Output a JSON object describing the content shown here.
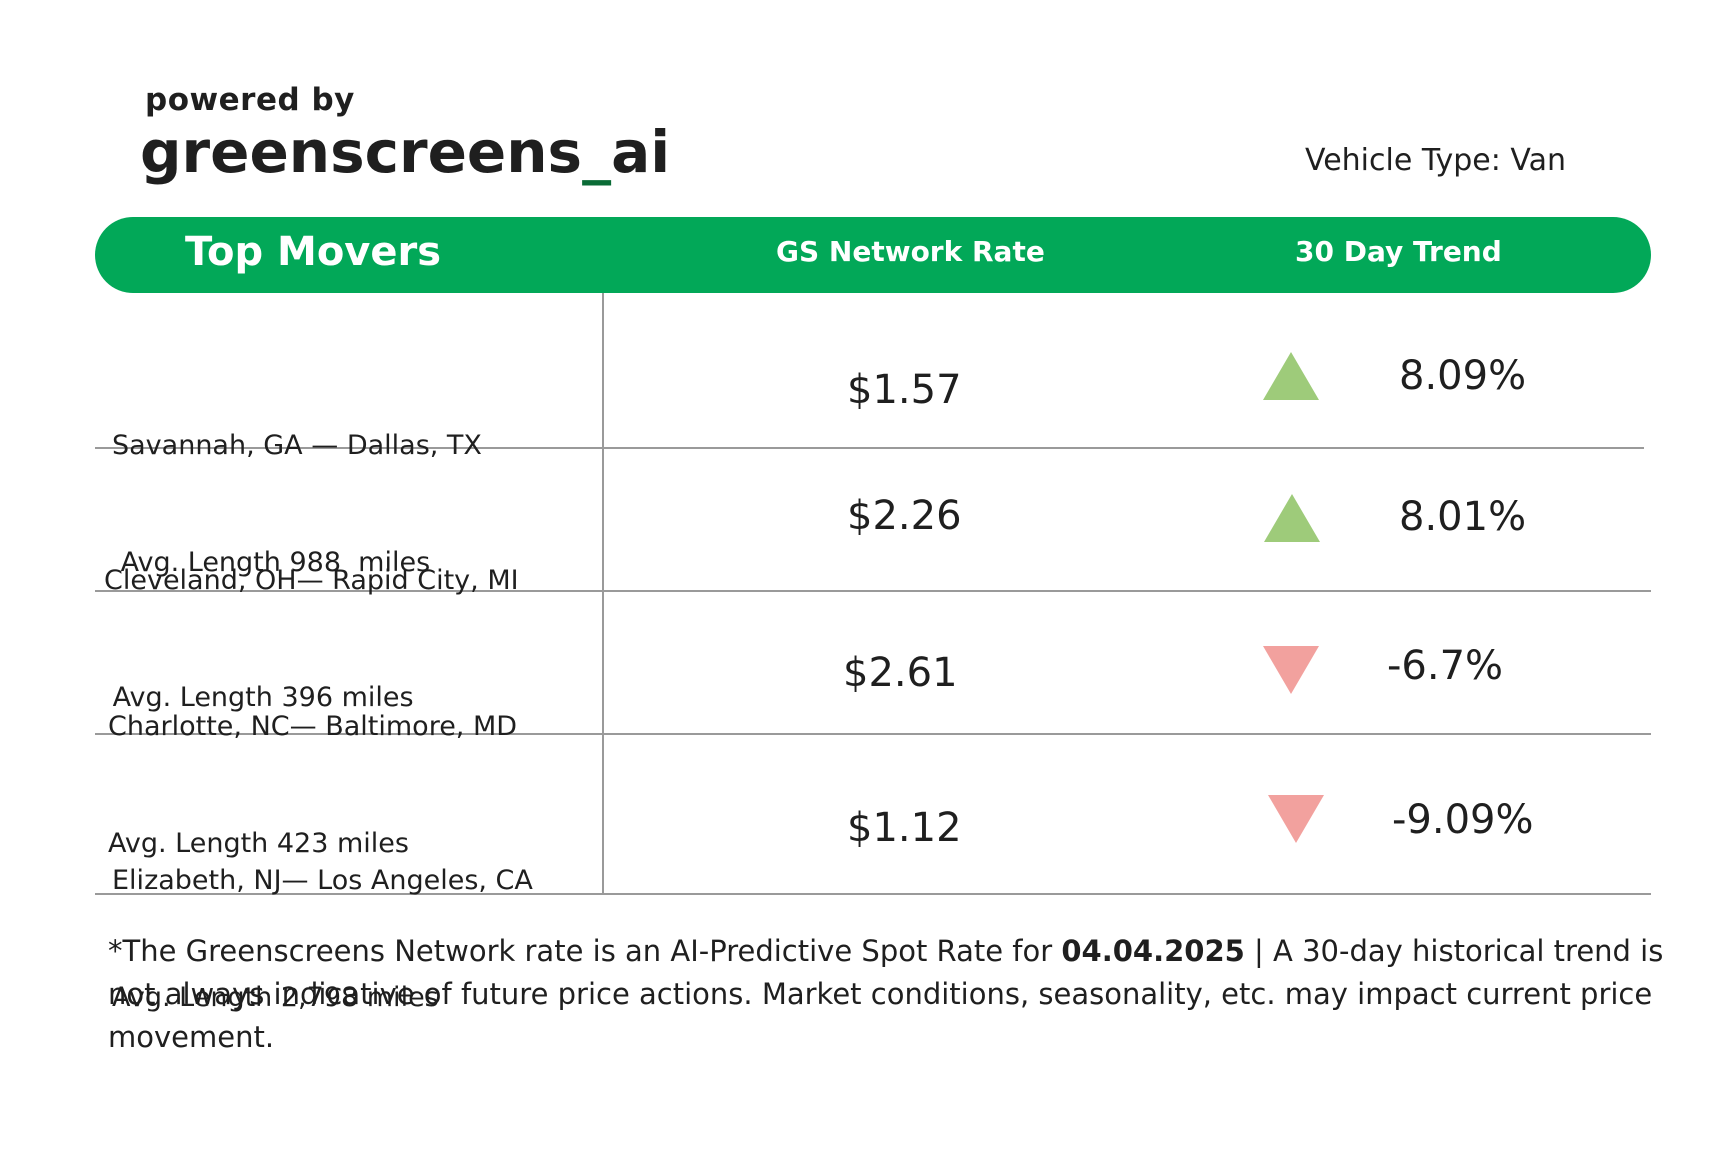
{
  "brand": {
    "powered_by": "powered by",
    "logo_text_left": "greenscreens",
    "logo_underscore": "_",
    "logo_text_right": "ai"
  },
  "vehicle_type": "Vehicle Type: Van",
  "header": {
    "col1": "Top Movers",
    "col2": "GS Network Rate",
    "col3": "30 Day Trend",
    "color": "#02a858"
  },
  "rows": [
    {
      "route": "Savannah, GA — Dallas, TX",
      "length": " Avg. Length 988  miles",
      "rate": "$1.57",
      "trend": "up",
      "change": "8.09%"
    },
    {
      "route": "Cleveland, OH— Rapid City, MI",
      "length": " Avg. Length 396 miles",
      "rate": "$2.26",
      "trend": "up",
      "change": "8.01%"
    },
    {
      "route": "Charlotte, NC— Baltimore, MD",
      "length": "Avg. Length 423 miles",
      "rate": "$2.61",
      "trend": "down",
      "change": "-6.7%"
    },
    {
      "route": "Elizabeth, NJ— Los Angeles, CA",
      "length": "Avg. Length 2,798 miles",
      "rate": "$1.12",
      "trend": "down",
      "change": "-9.09%"
    }
  ],
  "trend_colors": {
    "up": "#9ecb7a",
    "down": "#f2a19e"
  },
  "footnote": {
    "part1": "*The Greenscreens Network rate is an AI-Predictive Spot Rate for ",
    "date": "04.04.2025",
    "part2": " | A 30-day historical trend is not always indicative of future price actions. Market conditions, seasonality, etc. may impact current price movement."
  }
}
